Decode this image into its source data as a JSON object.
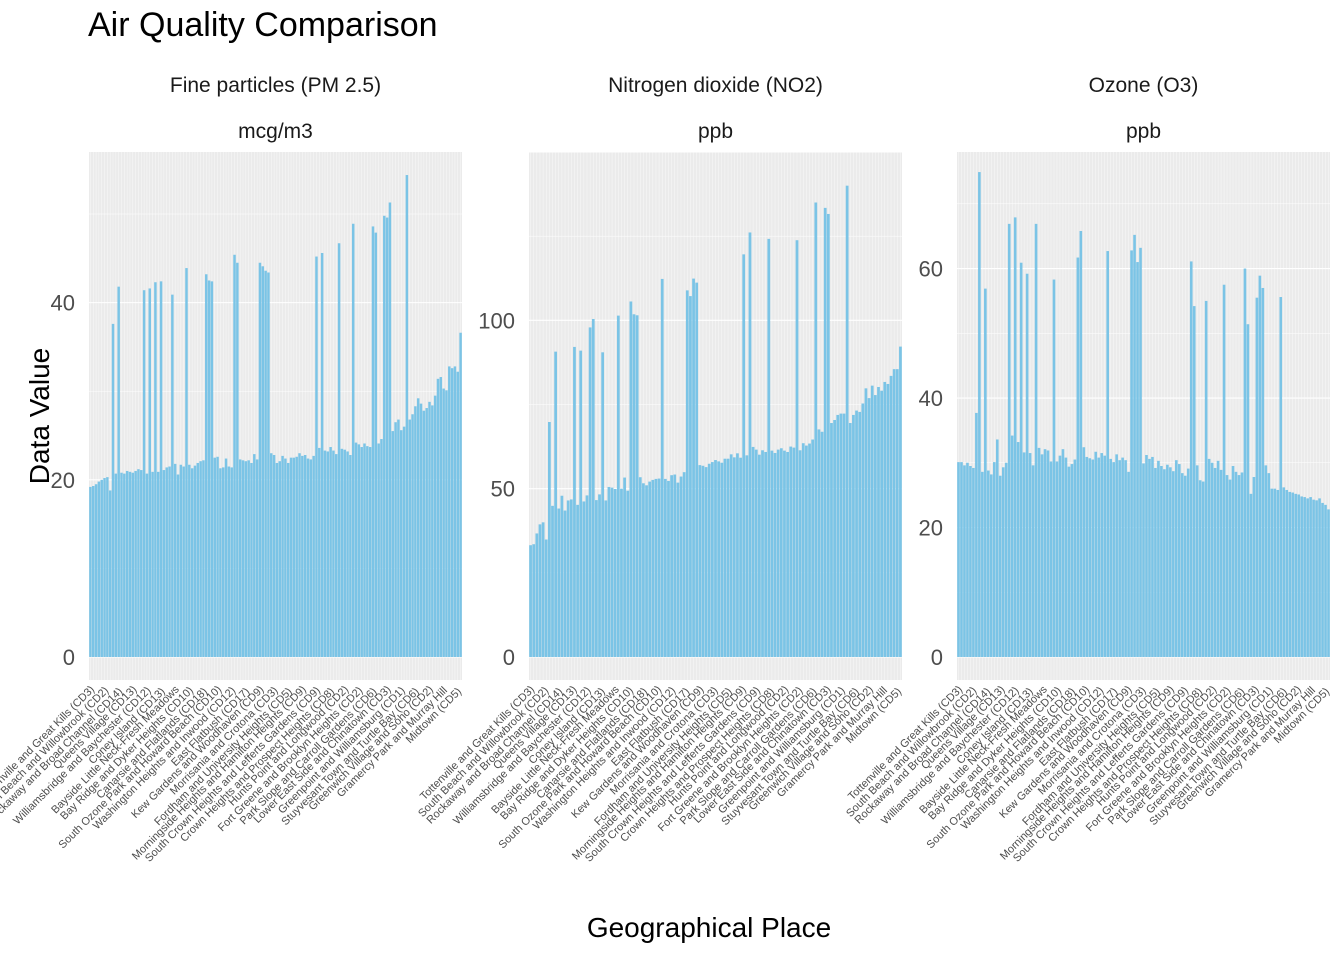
{
  "chart_data": {
    "type": "bar",
    "title": "Air Quality Comparison",
    "xlabel": "Geographical Place",
    "ylabel": "Data Value",
    "bar_color": "#7BC4E6",
    "panel_background": "#EBEBEB",
    "grid": true,
    "legend": "none",
    "panels": [
      {
        "name": "Fine particles (PM 2.5)",
        "unit": "mcg/m3",
        "ylim": [
          0,
          57
        ],
        "yticks": [
          0,
          20,
          40
        ],
        "values": [
          19.2,
          19.3,
          19.5,
          19.8,
          20.0,
          20.2,
          20.3,
          18.8,
          37.6,
          20.7,
          41.8,
          20.8,
          20.7,
          21.0,
          20.9,
          20.8,
          21.0,
          21.2,
          21.1,
          41.4,
          20.7,
          41.6,
          20.9,
          42.3,
          20.9,
          42.4,
          21.1,
          21.4,
          21.5,
          40.9,
          21.8,
          20.6,
          21.7,
          21.5,
          43.9,
          21.7,
          21.3,
          21.6,
          21.9,
          22.1,
          22.2,
          43.2,
          42.5,
          42.4,
          22.5,
          22.6,
          21.3,
          21.4,
          22.4,
          21.5,
          21.4,
          45.4,
          44.5,
          22.3,
          22.2,
          22.1,
          22.2,
          21.9,
          22.9,
          22.3,
          44.5,
          44.1,
          43.6,
          43.4,
          23.0,
          22.8,
          21.9,
          22.1,
          22.7,
          22.4,
          21.9,
          22.5,
          22.5,
          22.6,
          23.0,
          22.7,
          22.8,
          22.4,
          22.3,
          22.7,
          45.2,
          23.6,
          45.6,
          23.3,
          23.2,
          23.7,
          23.3,
          22.9,
          46.7,
          23.5,
          23.4,
          23.2,
          22.8,
          48.9,
          24.2,
          24.0,
          23.7,
          24.1,
          23.8,
          23.7,
          48.6,
          47.9,
          24.1,
          24.6,
          49.8,
          49.6,
          51.3,
          25.5,
          26.5,
          26.8,
          25.6,
          26.0,
          54.4,
          26.8,
          27.4,
          28.3,
          29.2,
          28.6,
          27.8,
          28.1,
          28.8,
          28.4,
          29.5,
          31.4,
          31.6,
          30.3,
          30.1,
          32.8,
          32.6,
          32.8,
          32.2,
          36.6
        ]
      },
      {
        "name": "Nitrogen dioxide (NO2)",
        "unit": "ppb",
        "ylim": [
          0,
          150
        ],
        "yticks": [
          0,
          50,
          100
        ],
        "values": [
          33.2,
          33.5,
          36.7,
          39.4,
          40.0,
          34.9,
          69.8,
          44.9,
          90.7,
          44.1,
          47.9,
          43.5,
          46.5,
          46.8,
          92.1,
          45.2,
          91.0,
          46.2,
          48.0,
          97.9,
          100.4,
          46.6,
          48.3,
          90.5,
          46.5,
          50.5,
          50.3,
          49.9,
          101.4,
          50.0,
          53.3,
          49.4,
          105.6,
          101.8,
          101.5,
          53.4,
          51.6,
          51.0,
          52.1,
          52.6,
          52.9,
          53.0,
          112.3,
          52.9,
          52.3,
          54.0,
          54.2,
          51.8,
          53.6,
          54.9,
          108.9,
          107.2,
          112.4,
          111.2,
          57.0,
          56.8,
          56.4,
          57.4,
          57.9,
          58.5,
          58.1,
          57.7,
          58.9,
          58.9,
          60.2,
          59.3,
          60.5,
          59.2,
          119.6,
          59.9,
          126.1,
          62.4,
          61.6,
          60.1,
          61.4,
          60.9,
          124.2,
          61.3,
          60.6,
          61.6,
          62.0,
          61.3,
          60.9,
          62.5,
          62.2,
          123.8,
          61.4,
          63.5,
          62.8,
          63.4,
          64.6,
          135.0,
          67.6,
          66.9,
          133.4,
          131.6,
          69.5,
          70.4,
          71.9,
          72.3,
          72.3,
          140.0,
          69.5,
          71.9,
          73.2,
          72.8,
          75.3,
          79.8,
          76.9,
          80.6,
          77.8,
          80.2,
          79.1,
          81.7,
          81.1,
          83.5,
          85.5,
          85.5,
          92.2
        ]
      },
      {
        "name": "Ozone (O3)",
        "unit": "ppb",
        "ylim": [
          0,
          78
        ],
        "yticks": [
          0,
          20,
          40,
          60
        ],
        "values": [
          30.1,
          30.1,
          29.6,
          30.0,
          29.5,
          29.2,
          37.7,
          74.9,
          28.6,
          56.9,
          28.8,
          28.2,
          30.1,
          33.6,
          28.0,
          29.3,
          30.0,
          66.9,
          34.2,
          67.9,
          33.2,
          60.9,
          31.6,
          59.2,
          31.5,
          29.6,
          66.9,
          32.3,
          31.3,
          32.1,
          31.9,
          30.2,
          58.3,
          30.2,
          31.1,
          32.1,
          30.8,
          29.4,
          29.8,
          30.5,
          61.7,
          65.8,
          32.4,
          30.9,
          30.7,
          30.5,
          31.7,
          30.8,
          31.5,
          31.1,
          62.7,
          30.6,
          30.1,
          31.3,
          30.4,
          30.8,
          30.4,
          28.6,
          62.8,
          65.2,
          61.0,
          63.2,
          29.9,
          31.2,
          30.6,
          30.9,
          29.2,
          30.3,
          29.5,
          29.0,
          29.7,
          29.3,
          28.7,
          30.4,
          29.8,
          28.4,
          28.0,
          29.1,
          61.1,
          54.2,
          29.6,
          27.3,
          27.1,
          55.0,
          30.6,
          30.0,
          29.2,
          30.3,
          28.9,
          57.5,
          28.1,
          27.4,
          29.5,
          28.6,
          28.1,
          28.5,
          60.0,
          51.4,
          25.2,
          27.8,
          55.5,
          58.9,
          57.0,
          29.6,
          28.4,
          26.0,
          26.0,
          25.8,
          55.6,
          26.2,
          25.8,
          25.5,
          25.4,
          25.2,
          25.1,
          24.8,
          24.7,
          24.5,
          24.7,
          24.3,
          24.2,
          24.5,
          23.8,
          23.5,
          22.8
        ]
      }
    ],
    "categories": [
      "Tottenville and Great Kills (CD3)",
      "South Beach and Willowbrook (CD2)",
      "Rockaway and Broad Channel (CD14)",
      "Queens Village (CD13)",
      "Williamsbridge and Baychester (CD12)",
      "Coney Island (CD13)",
      "Bayside Little Neck-Fresh Meadows",
      "Bay Ridge and Dyker Heights (CD10)",
      "Canarsie and Flatlands (CD18)",
      "South Ozone Park and Howard Beach (CD10)",
      "Washington Heights and Inwood (CD12)",
      "East Flatbush (CD17)",
      "Kew Gardens and Woodhaven (CD9)",
      "Morrisania and Crotona (CD3)",
      "Fordham and University Heights (CD5)",
      "Morningside Heights and Hamilton Heights (CD9)",
      "South Crown Heights and Lefferts Gardens (CD9)",
      "Crown Heights and Prospect Heights (CD8)",
      "Hunts Point and Longwood (CD2)",
      "Fort Greene and Brooklyn Heights (CD2)",
      "Park Slope and Carroll Gardens (CD6)",
      "Lower East Side and Chinatown (CD3)",
      "Greenpoint and Williamsburg (CD1)",
      "Stuyvesant Town and Turtle Bay (CD6)",
      "Greenwich Village and Soho (CD2)",
      "Gramercy Park and Murray Hill",
      "Midtown (CD5)"
    ]
  }
}
